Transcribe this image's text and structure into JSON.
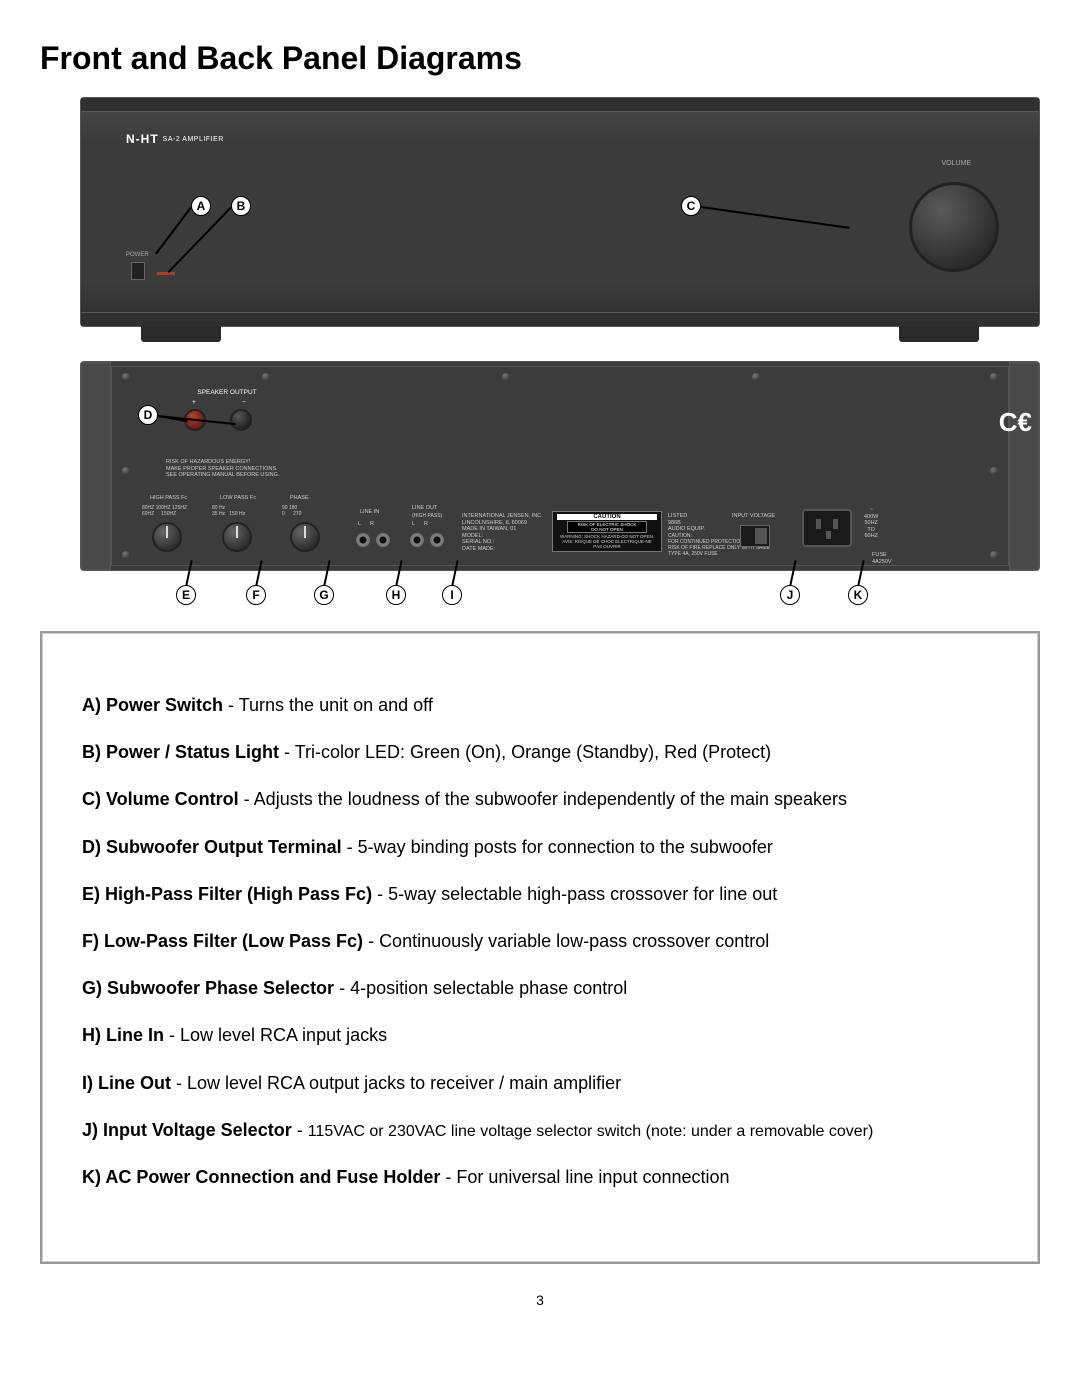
{
  "page": {
    "title": "Front and Back Panel Diagrams",
    "number": "3"
  },
  "front": {
    "brand": "N-HT",
    "model": "SA-2 AMPLIFIER",
    "volume_label": "VOLUME",
    "power_label": "POWER",
    "callouts": [
      "A",
      "B",
      "C"
    ]
  },
  "back": {
    "speaker_output": "SPEAKER OUTPUT",
    "plus": "+",
    "minus": "−",
    "warning": "RISK OF HAZARDOUS ENERGY!\nMAKE PROPER SPEAKER CONNECTIONS.\nSEE OPERATING MANUAL BEFORE USING.",
    "highpass": "HIGH PASS Fc",
    "lowpass": "LOW PASS Fc",
    "phase": "PHASE",
    "hp_marks": "80HZ 100HZ 125HZ\n60HZ     150HZ",
    "lp_marks": "80 Hz\n35 Hz   150 Hz",
    "phase_marks": "90 180\n0      270",
    "line_in": "LINE IN",
    "line_out": "LINE OUT",
    "line_out_sub": "(HIGH PASS)",
    "lr": "L      R",
    "mfg": "INTERNATIONAL JENSEN, INC.\nLINCOLNSHIRE, IL 60069\nMADE IN TAIWAN, 01\nMODEL:\nSERIAL NO.:\nDATE MADE:",
    "caution_title": "CAUTION",
    "caution_sub": "RISK OF ELECTRIC SHOCK\nDO NOT OPEN",
    "caution_body": "WARNING: SHOCK HAZARD-DO NOT OPEN.\nAVIS: RISQUE DE CHOC ELECTRIQUE-NE\nPAS OUVRIR",
    "ul": "LISTED\n986B\nAUDIO EQUIP.",
    "caution2": "CAUTION:\nFOR CONTINUED PROTECTION AGAINST\nRISK OF FIRE REPLACE ONLY WITH SAME\nTYPE 4A, 250V FUSE",
    "input_voltage": "INPUT VOLTAGE",
    "fuse": "FUSE\n4A250V",
    "power_spec": "~\n400W\n50HZ\nTO\n60HZ",
    "ce": "CE",
    "callouts": [
      "D",
      "E",
      "F",
      "G",
      "H",
      "I",
      "J",
      "K"
    ]
  },
  "legend": [
    {
      "key": "A",
      "label": "Power Switch",
      "desc": "Turns the unit on and off",
      "small": false
    },
    {
      "key": "B",
      "label": "Power / Status Light",
      "desc": "Tri-color LED: Green (On), Orange (Standby), Red (Protect)",
      "small": false
    },
    {
      "key": "C",
      "label": "Volume Control",
      "desc": "Adjusts the loudness of the subwoofer independently of the main speakers",
      "small": false
    },
    {
      "key": "D",
      "label": "Subwoofer Output Terminal",
      "desc": "5-way binding posts for connection to the subwoofer",
      "small": false
    },
    {
      "key": "E",
      "label": "High-Pass Filter (High Pass Fc)",
      "desc": "5-way selectable high-pass crossover for line out",
      "small": false
    },
    {
      "key": "F",
      "label": "Low-Pass Filter (Low Pass Fc)",
      "desc": "Continuously variable low-pass crossover control",
      "small": false
    },
    {
      "key": "G",
      "label": "Subwoofer Phase Selector",
      "desc": "4-position selectable phase control",
      "small": false
    },
    {
      "key": "H",
      "label": "Line In",
      "desc": "Low level RCA input jacks",
      "small": false
    },
    {
      "key": "I",
      "label": "Line Out",
      "desc": "Low level RCA output jacks to receiver / main amplifier",
      "small": false
    },
    {
      "key": "J",
      "label": "Input Voltage Selector",
      "desc": "115VAC or 230VAC line voltage selector switch (note: under a removable cover)",
      "small": true
    },
    {
      "key": "K",
      "label": "AC Power Connection and Fuse Holder",
      "desc": "For universal line input connection",
      "small": false
    }
  ],
  "colors": {
    "panel_bg": "#3b3b3b",
    "accent": "#a04030",
    "text": "#000000",
    "border": "#999999"
  }
}
